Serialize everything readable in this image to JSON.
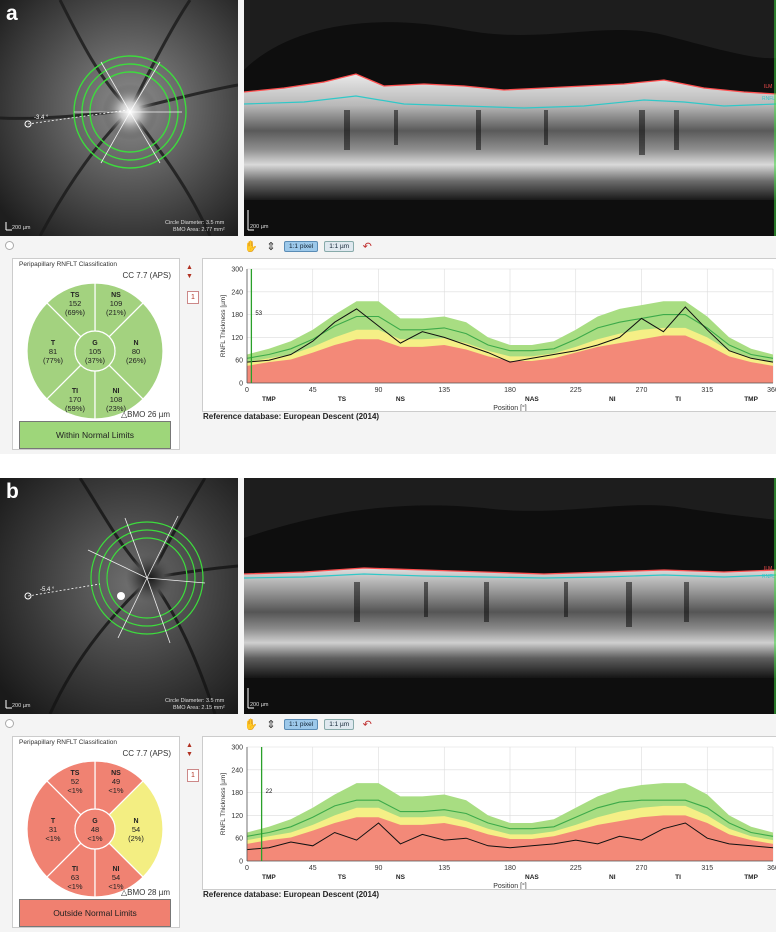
{
  "panels": [
    {
      "letter": "a",
      "fundus": {
        "circle_diameter": "Circle Diameter: 3.5 mm",
        "bmo_area": "BMO Area: 2.77 mm²",
        "scale": "200 µm",
        "angle": "-3.4 °"
      },
      "oct": {
        "scale": "200 µm",
        "ilm_label": "ILM",
        "rnfl_label": "RNFL"
      },
      "toolbar": {
        "btn_pixel": "1:1 pixel",
        "btn_um": "1:1 µm"
      },
      "classification": {
        "title": "Peripapillary RNFLT Classification",
        "cc": "CC 7.7 (APS)",
        "sectors": {
          "TS": {
            "name": "TS",
            "value": "152",
            "pct": "(69%)",
            "status": "normal"
          },
          "NS": {
            "name": "NS",
            "value": "109",
            "pct": "(21%)",
            "status": "normal"
          },
          "T": {
            "name": "T",
            "value": "81",
            "pct": "(77%)",
            "status": "normal"
          },
          "G": {
            "name": "G",
            "value": "105",
            "pct": "(37%)",
            "status": "normal"
          },
          "N": {
            "name": "N",
            "value": "80",
            "pct": "(26%)",
            "status": "normal"
          },
          "TI": {
            "name": "TI",
            "value": "170",
            "pct": "(59%)",
            "status": "normal"
          },
          "NI": {
            "name": "NI",
            "value": "108",
            "pct": "(23%)",
            "status": "normal"
          }
        },
        "bmo": "△BMO 26 µm",
        "result": "Within Normal Limits",
        "result_color": "#9ed67a"
      },
      "marker": "1",
      "marker_value": "53",
      "marker_position": 3,
      "reference": "Reference database: European Descent (2014)"
    },
    {
      "letter": "b",
      "fundus": {
        "circle_diameter": "Circle Diameter: 3.5 mm",
        "bmo_area": "BMO Area: 2.15 mm²",
        "scale": "200 µm",
        "angle": "-5.4 °"
      },
      "oct": {
        "scale": "200 µm",
        "ilm_label": "ILM",
        "rnfl_label": "RNFL"
      },
      "toolbar": {
        "btn_pixel": "1:1 pixel",
        "btn_um": "1:1 µm"
      },
      "classification": {
        "title": "Peripapillary RNFLT Classification",
        "cc": "CC 7.7 (APS)",
        "sectors": {
          "TS": {
            "name": "TS",
            "value": "52",
            "pct": "<1%",
            "status": "outside"
          },
          "NS": {
            "name": "NS",
            "value": "49",
            "pct": "<1%",
            "status": "outside"
          },
          "T": {
            "name": "T",
            "value": "31",
            "pct": "<1%",
            "status": "outside"
          },
          "G": {
            "name": "G",
            "value": "48",
            "pct": "<1%",
            "status": "outside"
          },
          "N": {
            "name": "N",
            "value": "54",
            "pct": "(2%)",
            "status": "borderline"
          },
          "TI": {
            "name": "TI",
            "value": "63",
            "pct": "<1%",
            "status": "outside"
          },
          "NI": {
            "name": "NI",
            "value": "54",
            "pct": "<1%",
            "status": "outside"
          }
        },
        "bmo": "△BMO 28 µm",
        "result": "Outside Normal Limits",
        "result_color": "#f08070"
      },
      "marker": "1",
      "marker_value": "22",
      "marker_position": 10,
      "reference": "Reference database: European Descent (2014)"
    }
  ],
  "status_colors": {
    "normal": "#a3d27f",
    "borderline": "#f3ee82",
    "outside": "#f08272"
  },
  "chart_data": [
    {
      "type": "area",
      "xlabel": "Position [°]",
      "ylabel": "RNFL Thickness [µm]",
      "xlim": [
        0,
        360
      ],
      "ylim": [
        0,
        300
      ],
      "xticks": [
        0,
        45,
        90,
        135,
        180,
        225,
        270,
        315,
        360
      ],
      "yticks": [
        0,
        60,
        120,
        180,
        240,
        300
      ],
      "sector_labels": [
        {
          "label": "TMP",
          "x": 15
        },
        {
          "label": "TS",
          "x": 65
        },
        {
          "label": "NS",
          "x": 105
        },
        {
          "label": "NAS",
          "x": 195
        },
        {
          "label": "NI",
          "x": 250
        },
        {
          "label": "TI",
          "x": 295
        },
        {
          "label": "TMP",
          "x": 345
        }
      ],
      "x": [
        0,
        15,
        30,
        45,
        60,
        75,
        90,
        105,
        120,
        135,
        150,
        165,
        180,
        195,
        210,
        225,
        240,
        255,
        270,
        285,
        300,
        315,
        330,
        345,
        360
      ],
      "normal_upper": [
        75,
        90,
        110,
        140,
        180,
        215,
        215,
        170,
        170,
        175,
        160,
        120,
        100,
        100,
        110,
        140,
        175,
        195,
        205,
        215,
        215,
        175,
        120,
        90,
        75
      ],
      "borderline_upper": [
        55,
        65,
        75,
        95,
        120,
        140,
        140,
        115,
        115,
        118,
        105,
        85,
        70,
        70,
        78,
        95,
        115,
        130,
        140,
        145,
        145,
        120,
        85,
        65,
        55
      ],
      "outside_upper": [
        45,
        55,
        62,
        80,
        100,
        115,
        115,
        95,
        95,
        100,
        88,
        70,
        58,
        58,
        65,
        80,
        95,
        105,
        115,
        125,
        125,
        100,
        70,
        55,
        45
      ],
      "mean": [
        65,
        75,
        90,
        115,
        150,
        175,
        175,
        140,
        140,
        145,
        130,
        100,
        85,
        85,
        90,
        115,
        145,
        160,
        170,
        180,
        180,
        145,
        100,
        75,
        65
      ],
      "patient": [
        55,
        60,
        75,
        110,
        160,
        195,
        150,
        105,
        135,
        120,
        100,
        80,
        55,
        65,
        75,
        85,
        100,
        120,
        170,
        135,
        200,
        140,
        85,
        65,
        55
      ]
    },
    {
      "type": "area",
      "xlabel": "Position [°]",
      "ylabel": "RNFL Thickness [µm]",
      "xlim": [
        0,
        360
      ],
      "ylim": [
        0,
        300
      ],
      "xticks": [
        0,
        45,
        90,
        135,
        180,
        225,
        270,
        315,
        360
      ],
      "yticks": [
        0,
        60,
        120,
        180,
        240,
        300
      ],
      "sector_labels": [
        {
          "label": "TMP",
          "x": 15
        },
        {
          "label": "TS",
          "x": 65
        },
        {
          "label": "NS",
          "x": 105
        },
        {
          "label": "NAS",
          "x": 195
        },
        {
          "label": "NI",
          "x": 250
        },
        {
          "label": "TI",
          "x": 295
        },
        {
          "label": "TMP",
          "x": 345
        }
      ],
      "x": [
        0,
        15,
        30,
        45,
        60,
        75,
        90,
        105,
        120,
        135,
        150,
        165,
        180,
        195,
        210,
        225,
        240,
        255,
        270,
        285,
        300,
        315,
        330,
        345,
        360
      ],
      "normal_upper": [
        75,
        90,
        110,
        140,
        175,
        205,
        205,
        170,
        170,
        175,
        160,
        120,
        100,
        100,
        110,
        140,
        170,
        190,
        200,
        205,
        205,
        175,
        120,
        90,
        75
      ],
      "borderline_upper": [
        55,
        65,
        75,
        95,
        120,
        140,
        140,
        115,
        115,
        118,
        105,
        85,
        70,
        70,
        78,
        95,
        115,
        130,
        140,
        145,
        145,
        120,
        85,
        65,
        55
      ],
      "outside_upper": [
        45,
        55,
        62,
        80,
        100,
        115,
        115,
        95,
        95,
        100,
        88,
        70,
        58,
        58,
        65,
        80,
        95,
        105,
        115,
        120,
        120,
        100,
        70,
        55,
        45
      ],
      "mean": [
        65,
        75,
        90,
        115,
        145,
        160,
        160,
        130,
        130,
        135,
        125,
        100,
        85,
        85,
        90,
        115,
        140,
        155,
        160,
        160,
        160,
        140,
        100,
        75,
        65
      ],
      "patient": [
        30,
        35,
        50,
        40,
        75,
        55,
        100,
        45,
        70,
        55,
        60,
        40,
        35,
        40,
        45,
        55,
        45,
        65,
        55,
        85,
        100,
        60,
        45,
        40,
        35
      ]
    }
  ]
}
